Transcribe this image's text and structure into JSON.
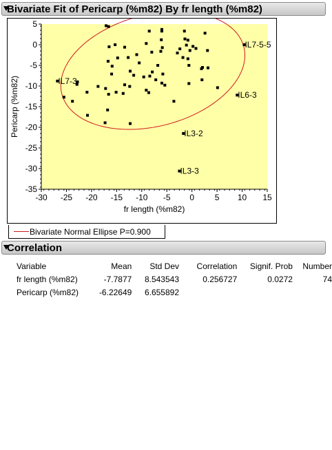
{
  "header": {
    "bivariate_title": "Bivariate Fit of Pericarp (%m82) By fr length (%m82)",
    "correlation_title": "Correlation"
  },
  "legend": {
    "ellipse_label": "Bivariate Normal Ellipse P=0.900"
  },
  "colors": {
    "plot_background": "#ffffa8",
    "ellipse": "#d01818",
    "points": "#000000",
    "header": "#d4d4d4"
  },
  "chart_data": {
    "type": "scatter",
    "title": "Bivariate Fit of Pericarp (%m82) By fr length (%m82)",
    "xlabel": "fr length (%m82)",
    "ylabel": "Pericarp (%m82)",
    "xlim": [
      -30,
      15
    ],
    "ylim": [
      -35,
      5
    ],
    "xticks": [
      -30,
      -25,
      -20,
      -15,
      -10,
      -5,
      0,
      5,
      10,
      15
    ],
    "yticks": [
      5,
      0,
      -5,
      -10,
      -15,
      -20,
      -25,
      -30,
      -35
    ],
    "grid": false,
    "legend_position": "bottom-left",
    "ellipse": {
      "label": "Bivariate Normal Ellipse P=0.900",
      "probability": 0.9,
      "center": [
        -7.7877,
        -6.22649
      ],
      "sd_x": 8.543543,
      "sd_y": 6.655892,
      "correlation": 0.256727
    },
    "points": [
      {
        "x": -26.8,
        "y": -8.8,
        "label": "IL7-3"
      },
      {
        "x": 10.4,
        "y": 0.0,
        "label": "IL7-5-5"
      },
      {
        "x": 9.0,
        "y": -12.2,
        "label": "IL6-3"
      },
      {
        "x": -1.7,
        "y": -21.5,
        "label": "IL3-2"
      },
      {
        "x": -2.5,
        "y": -30.6,
        "label": "IL3-3"
      },
      {
        "x": -17.1,
        "y": 4.6,
        "label": ""
      },
      {
        "x": -16.6,
        "y": 4.4,
        "label": ""
      },
      {
        "x": -16.5,
        "y": -0.5,
        "label": ""
      },
      {
        "x": -15.3,
        "y": 0.0,
        "label": ""
      },
      {
        "x": -13.4,
        "y": -0.6,
        "label": ""
      },
      {
        "x": -16.7,
        "y": -4.0,
        "label": ""
      },
      {
        "x": -15.9,
        "y": -5.2,
        "label": ""
      },
      {
        "x": -14.8,
        "y": -3.2,
        "label": ""
      },
      {
        "x": -12.7,
        "y": -3.1,
        "label": ""
      },
      {
        "x": -16.0,
        "y": -7.1,
        "label": ""
      },
      {
        "x": -12.3,
        "y": -6.4,
        "label": ""
      },
      {
        "x": -11.0,
        "y": -2.4,
        "label": ""
      },
      {
        "x": -10.5,
        "y": -4.4,
        "label": ""
      },
      {
        "x": -11.6,
        "y": -7.4,
        "label": ""
      },
      {
        "x": -9.6,
        "y": -7.8,
        "label": ""
      },
      {
        "x": -9.1,
        "y": 0.3,
        "label": ""
      },
      {
        "x": -8.0,
        "y": -1.8,
        "label": ""
      },
      {
        "x": -8.5,
        "y": 3.3,
        "label": ""
      },
      {
        "x": -6.0,
        "y": 3.3,
        "label": ""
      },
      {
        "x": -6.0,
        "y": 3.7,
        "label": ""
      },
      {
        "x": -6.1,
        "y": 1.2,
        "label": ""
      },
      {
        "x": -5.9,
        "y": -0.7,
        "label": ""
      },
      {
        "x": -6.2,
        "y": -1.6,
        "label": ""
      },
      {
        "x": -6.8,
        "y": -5.0,
        "label": ""
      },
      {
        "x": -7.9,
        "y": -6.6,
        "label": ""
      },
      {
        "x": -8.4,
        "y": -7.6,
        "label": ""
      },
      {
        "x": -7.2,
        "y": -8.5,
        "label": ""
      },
      {
        "x": -5.8,
        "y": -7.1,
        "label": ""
      },
      {
        "x": -6.0,
        "y": -9.3,
        "label": ""
      },
      {
        "x": -5.4,
        "y": -9.8,
        "label": ""
      },
      {
        "x": -9.1,
        "y": -11.0,
        "label": ""
      },
      {
        "x": -8.6,
        "y": -11.6,
        "label": ""
      },
      {
        "x": -13.4,
        "y": -9.7,
        "label": ""
      },
      {
        "x": -12.4,
        "y": -10.1,
        "label": ""
      },
      {
        "x": -13.7,
        "y": -11.8,
        "label": ""
      },
      {
        "x": -15.1,
        "y": -11.5,
        "label": ""
      },
      {
        "x": -17.2,
        "y": -10.6,
        "label": ""
      },
      {
        "x": -18.7,
        "y": -10.1,
        "label": ""
      },
      {
        "x": -16.6,
        "y": -12.0,
        "label": ""
      },
      {
        "x": -20.9,
        "y": -11.5,
        "label": ""
      },
      {
        "x": -22.8,
        "y": -9.0,
        "label": ""
      },
      {
        "x": -22.9,
        "y": -9.6,
        "label": ""
      },
      {
        "x": -25.5,
        "y": -12.7,
        "label": ""
      },
      {
        "x": -23.8,
        "y": -13.7,
        "label": ""
      },
      {
        "x": -16.8,
        "y": -15.8,
        "label": ""
      },
      {
        "x": -20.8,
        "y": -17.1,
        "label": ""
      },
      {
        "x": -17.3,
        "y": -18.9,
        "label": ""
      },
      {
        "x": -12.3,
        "y": -19.1,
        "label": ""
      },
      {
        "x": -3.6,
        "y": -13.7,
        "label": ""
      },
      {
        "x": -2.9,
        "y": -2.0,
        "label": ""
      },
      {
        "x": -2.4,
        "y": -1.0,
        "label": ""
      },
      {
        "x": -1.5,
        "y": 3.3,
        "label": ""
      },
      {
        "x": -1.4,
        "y": 1.4,
        "label": ""
      },
      {
        "x": -1.1,
        "y": -0.1,
        "label": ""
      },
      {
        "x": -0.8,
        "y": 1.1,
        "label": ""
      },
      {
        "x": -0.4,
        "y": -1.4,
        "label": ""
      },
      {
        "x": 0.2,
        "y": -0.4,
        "label": ""
      },
      {
        "x": 0.8,
        "y": -0.9,
        "label": ""
      },
      {
        "x": -1.8,
        "y": -3.1,
        "label": ""
      },
      {
        "x": -0.8,
        "y": -3.4,
        "label": ""
      },
      {
        "x": -0.6,
        "y": -5.0,
        "label": ""
      },
      {
        "x": -0.6,
        "y": -9.4,
        "label": ""
      },
      {
        "x": 1.9,
        "y": -5.8,
        "label": ""
      },
      {
        "x": 2.1,
        "y": -5.5,
        "label": ""
      },
      {
        "x": 2.0,
        "y": -8.5,
        "label": ""
      },
      {
        "x": 2.6,
        "y": 2.8,
        "label": ""
      },
      {
        "x": 3.1,
        "y": -1.4,
        "label": ""
      },
      {
        "x": 3.2,
        "y": -5.6,
        "label": ""
      },
      {
        "x": 5.1,
        "y": -10.4,
        "label": ""
      }
    ]
  },
  "correlation": {
    "columns": [
      "Variable",
      "Mean",
      "Std Dev",
      "Correlation",
      "Signif. Prob",
      "Number"
    ],
    "rows": [
      {
        "variable": "fr length (%m82)",
        "mean": "-7.7877",
        "std_dev": "8.543543",
        "correlation": "0.256727",
        "signif_prob": "0.0272",
        "number": "74"
      },
      {
        "variable": "Pericarp (%m82)",
        "mean": "-6.22649",
        "std_dev": "6.655892",
        "correlation": "",
        "signif_prob": "",
        "number": ""
      }
    ]
  }
}
